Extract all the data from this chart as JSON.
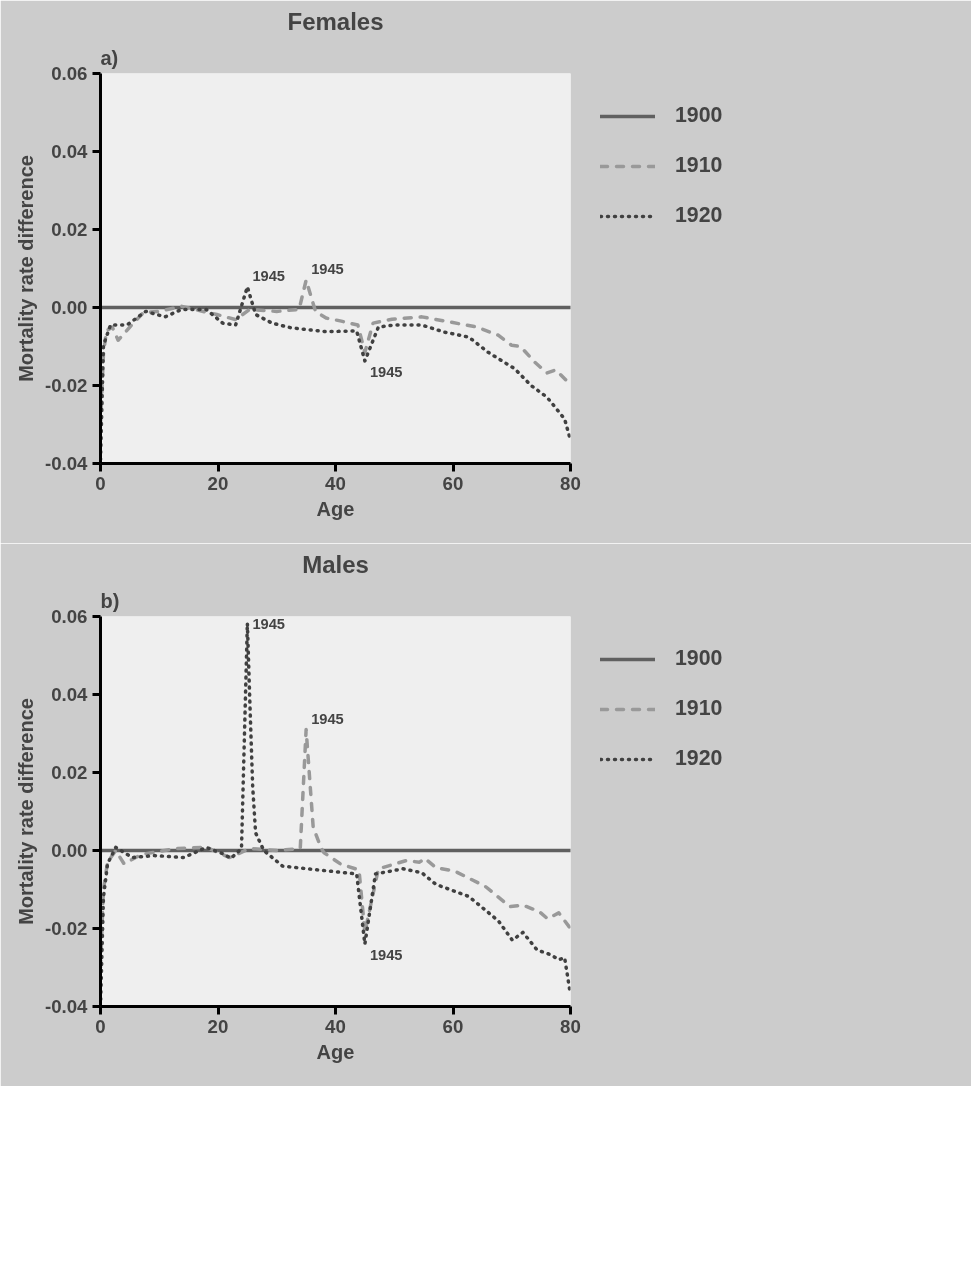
{
  "chart_data": [
    {
      "type": "line",
      "title": "Females",
      "xlabel": "Age",
      "ylabel": "Mortality rate difference",
      "xlim": [
        0,
        80
      ],
      "xticks": [
        0,
        20,
        40,
        60,
        80
      ],
      "ylim": [
        -0.04,
        0.06
      ],
      "yticks": [
        {
          "value": -0.04,
          "label": "-0.04"
        },
        {
          "value": -0.02,
          "label": "-0.02"
        },
        {
          "value": 0,
          "label": "0.00"
        },
        {
          "value": 0.02,
          "label": "0.02"
        },
        {
          "value": 0.04,
          "label": "0.04"
        },
        {
          "value": 0.06,
          "label": "0.06"
        }
      ],
      "legend": "right",
      "grid": false,
      "annotations": [
        "a)",
        {
          "text": "1945",
          "x": 25,
          "y": 0.0053
        },
        {
          "text": "1945",
          "x": 35,
          "y": 0.007
        },
        {
          "text": "1945",
          "x": 45,
          "y": -0.0137
        }
      ],
      "series": [
        {
          "name": "1900",
          "color": "#606060",
          "line_style": "solid",
          "x": [
            0,
            80
          ],
          "values": [
            0,
            0
          ]
        },
        {
          "name": "1910",
          "color": "#999999",
          "line_style": "dashed",
          "x": [
            0,
            0.5,
            1,
            2,
            3,
            5,
            7.3,
            10,
            13.8,
            16,
            19.8,
            23,
            25.4,
            30,
            33.8,
            35,
            36.6,
            38.4,
            41,
            43.8,
            45,
            46.4,
            49.6,
            54.7,
            59.4,
            64,
            67.7,
            70,
            71.5,
            73.9,
            76,
            77.5,
            79.5,
            80
          ],
          "values": [
            -0.03,
            -0.012,
            -0.006,
            -0.005,
            -0.0084,
            -0.005,
            -0.0013,
            -0.001,
            0.0003,
            -0.0005,
            -0.0018,
            -0.0031,
            -0.0005,
            -0.001,
            -0.0005,
            0.007,
            -0.001,
            -0.0027,
            -0.0035,
            -0.0045,
            -0.0115,
            -0.004,
            -0.003,
            -0.0024,
            -0.0037,
            -0.005,
            -0.0071,
            -0.0097,
            -0.01,
            -0.014,
            -0.0168,
            -0.016,
            -0.019,
            -0.02
          ]
        },
        {
          "name": "1920",
          "color": "#404040",
          "line_style": "dotted",
          "x": [
            0,
            0.5,
            1.7,
            4.5,
            7.7,
            11,
            13.8,
            18,
            20.8,
            23,
            25,
            26.4,
            29.2,
            32.4,
            38.4,
            43.6,
            45,
            47.3,
            50,
            54.7,
            58.5,
            62.7,
            66,
            70.5,
            73.3,
            76,
            79,
            80
          ],
          "values": [
            -0.039,
            -0.0097,
            -0.0045,
            -0.0045,
            -0.001,
            -0.0024,
            -0.0005,
            -0.0005,
            -0.004,
            -0.0045,
            0.0053,
            -0.0018,
            -0.004,
            -0.0052,
            -0.0062,
            -0.006,
            -0.0137,
            -0.005,
            -0.0045,
            -0.0045,
            -0.0063,
            -0.0076,
            -0.0115,
            -0.0157,
            -0.02,
            -0.023,
            -0.0286,
            -0.034
          ]
        }
      ]
    },
    {
      "type": "line",
      "title": "Males",
      "xlabel": "Age",
      "ylabel": "Mortality rate difference",
      "xlim": [
        0,
        80
      ],
      "xticks": [
        0,
        20,
        40,
        60,
        80
      ],
      "ylim": [
        -0.04,
        0.06
      ],
      "yticks": [
        {
          "value": -0.04,
          "label": "-0.04"
        },
        {
          "value": -0.02,
          "label": "-0.02"
        },
        {
          "value": 0,
          "label": "0.00"
        },
        {
          "value": 0.02,
          "label": "0.02"
        },
        {
          "value": 0.04,
          "label": "0.04"
        },
        {
          "value": 0.06,
          "label": "0.06"
        }
      ],
      "legend": "right",
      "grid": false,
      "annotations": [
        "b)",
        {
          "text": "1945",
          "x": 25,
          "y": 0.0583
        },
        {
          "text": "1945",
          "x": 35,
          "y": 0.031
        },
        {
          "text": "1945",
          "x": 45,
          "y": -0.024
        }
      ],
      "series": [
        {
          "name": "1900",
          "color": "#606060",
          "line_style": "solid",
          "x": [
            0,
            80
          ],
          "values": [
            0,
            0
          ]
        },
        {
          "name": "1910",
          "color": "#999999",
          "line_style": "dashed",
          "x": [
            0,
            0.5,
            1.2,
            2.6,
            4,
            7,
            12.8,
            18,
            22,
            25.4,
            30,
            34,
            35,
            36.2,
            37.5,
            38,
            40.8,
            44,
            45,
            47.3,
            52,
            54.3,
            55.2,
            57.1,
            60.3,
            65.5,
            69.7,
            71.9,
            74.7,
            76.1,
            78,
            80
          ],
          "values": [
            -0.03,
            -0.01,
            -0.003,
            0,
            -0.0034,
            -0.001,
            0.0005,
            0.0008,
            -0.0018,
            0.0005,
            0,
            0.0005,
            0.031,
            0.006,
            0.0008,
            -0.0005,
            -0.0034,
            -0.005,
            -0.021,
            -0.0047,
            -0.0026,
            -0.003,
            -0.002,
            -0.0044,
            -0.0053,
            -0.0092,
            -0.0144,
            -0.014,
            -0.0157,
            -0.0175,
            -0.016,
            -0.02
          ]
        },
        {
          "name": "1920",
          "color": "#404040",
          "line_style": "dotted",
          "x": [
            0,
            0.5,
            1.2,
            2.6,
            5.4,
            9.1,
            14.2,
            18,
            20.8,
            22.2,
            24,
            25,
            25.4,
            25.9,
            26.4,
            27.8,
            31,
            38.4,
            43.6,
            45,
            46.8,
            51.5,
            54.7,
            57.1,
            62.7,
            67.7,
            70.1,
            71.9,
            74.3,
            76.6,
            78,
            79,
            80
          ],
          "values": [
            -0.04,
            -0.012,
            -0.0034,
            0.0008,
            -0.0018,
            -0.0013,
            -0.0018,
            0.0008,
            -0.0008,
            -0.002,
            0.0005,
            0.0583,
            0.039,
            0.0165,
            0.0045,
            0,
            -0.004,
            -0.0052,
            -0.006,
            -0.024,
            -0.006,
            -0.0047,
            -0.0057,
            -0.0087,
            -0.0118,
            -0.018,
            -0.023,
            -0.021,
            -0.0255,
            -0.0267,
            -0.028,
            -0.0275,
            -0.037
          ]
        }
      ]
    }
  ]
}
